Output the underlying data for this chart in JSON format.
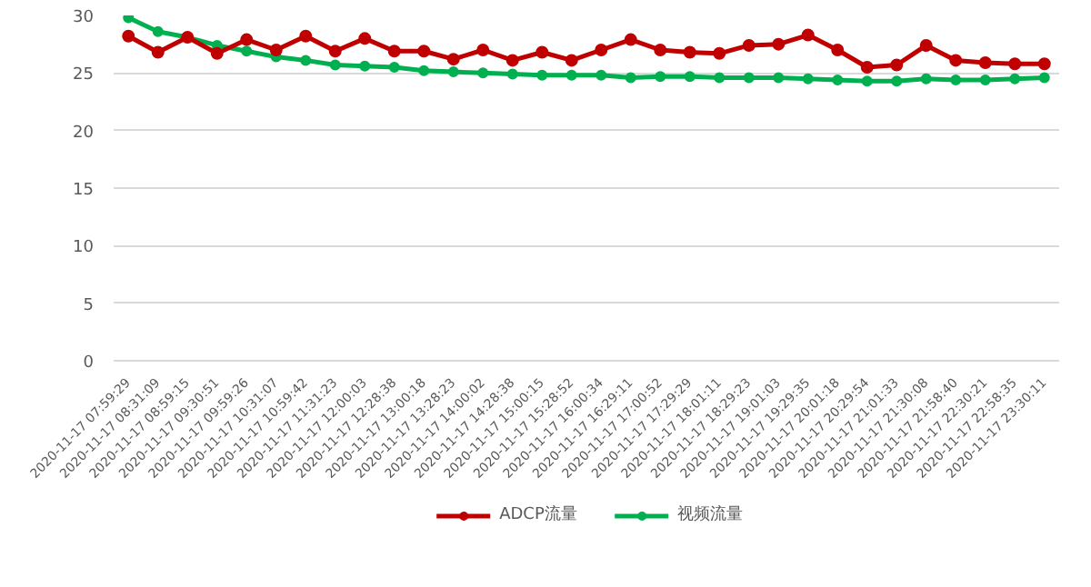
{
  "chart_data": {
    "type": "line",
    "categories": [
      "2020-11-17 07:59:29",
      "2020-11-17 08:31:09",
      "2020-11-17 08:59:15",
      "2020-11-17 09:30:51",
      "2020-11-17 09:59:26",
      "2020-11-17 10:31:07",
      "2020-11-17 10:59:42",
      "2020-11-17 11:31:23",
      "2020-11-17 12:00:03",
      "2020-11-17 12:28:38",
      "2020-11-17 13:00:18",
      "2020-11-17 13:28:23",
      "2020-11-17 14:00:02",
      "2020-11-17 14:28:38",
      "2020-11-17 15:00:15",
      "2020-11-17 15:28:52",
      "2020-11-17 16:00:34",
      "2020-11-17 16:29:11",
      "2020-11-17 17:00:52",
      "2020-11-17 17:29:29",
      "2020-11-17 18:01:11",
      "2020-11-17 18:29:23",
      "2020-11-17 19:01:03",
      "2020-11-17 19:29:35",
      "2020-11-17 20:01:18",
      "2020-11-17 20:29:54",
      "2020-11-17 21:01:33",
      "2020-11-17 21:30:08",
      "2020-11-17 21:58:40",
      "2020-11-17 22:30:21",
      "2020-11-17 22:58:35",
      "2020-11-17 23:30:11"
    ],
    "series": [
      {
        "name": "ADCP流量",
        "color": "#c00000",
        "values": [
          28.2,
          26.8,
          28.1,
          26.7,
          27.9,
          27.0,
          28.2,
          26.9,
          28.0,
          26.9,
          26.9,
          26.2,
          27.0,
          26.1,
          26.8,
          26.1,
          27.0,
          27.9,
          27.0,
          26.8,
          26.7,
          27.4,
          27.5,
          28.3,
          27.0,
          25.5,
          25.7,
          27.4,
          26.1,
          25.9,
          25.8,
          25.8
        ]
      },
      {
        "name": "视频流量",
        "color": "#00b050",
        "values": [
          29.8,
          28.6,
          28.1,
          27.4,
          26.9,
          26.4,
          26.1,
          25.7,
          25.6,
          25.5,
          25.2,
          25.1,
          25.0,
          24.9,
          24.8,
          24.8,
          24.8,
          24.6,
          24.7,
          24.7,
          24.6,
          24.6,
          24.6,
          24.5,
          24.4,
          24.3,
          24.3,
          24.5,
          24.4,
          24.4,
          24.5,
          24.6
        ]
      }
    ],
    "ylim": [
      0,
      30
    ],
    "yticks": [
      0,
      5,
      10,
      15,
      20,
      25,
      30
    ],
    "grid": "y",
    "legend": "bottom",
    "marker": "circle",
    "line_style": "solid"
  }
}
